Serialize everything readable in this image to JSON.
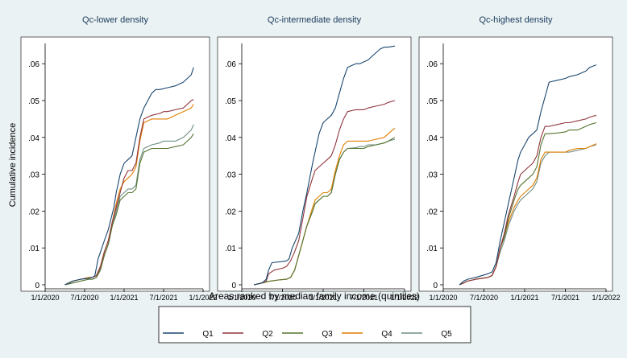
{
  "chart_data": {
    "type": "line",
    "ylabel": "Cumulative incidence",
    "yticks": [
      0,
      0.01,
      0.02,
      0.03,
      0.04,
      0.05,
      0.06
    ],
    "ytick_labels": [
      "0",
      ".01",
      ".02",
      ".03",
      ".04",
      ".05",
      ".06"
    ],
    "ylim": [
      0,
      0.0655
    ],
    "xlim": [
      "1/1/2020",
      "1/1/2022"
    ],
    "xticks": [
      "1/1/2020",
      "7/1/2020",
      "1/1/2021",
      "7/1/2021",
      "1/1/2022"
    ],
    "panels": [
      {
        "title": "Qc-lower density",
        "series": [
          {
            "name": "Q1",
            "x": [
              0.25,
              0.3,
              0.35,
              0.45,
              0.55,
              0.6,
              0.63,
              0.67,
              0.75,
              0.8,
              0.87,
              0.9,
              0.95,
              1.0,
              1.05,
              1.1,
              1.2,
              1.25,
              1.3,
              1.35,
              1.4,
              1.45,
              1.55,
              1.65,
              1.75,
              1.8,
              1.85,
              1.88
            ],
            "values": [
              0,
              0.0005,
              0.001,
              0.0015,
              0.0018,
              0.002,
              0.0025,
              0.007,
              0.012,
              0.015,
              0.021,
              0.025,
              0.03,
              0.033,
              0.034,
              0.035,
              0.045,
              0.048,
              0.05,
              0.052,
              0.053,
              0.053,
              0.0535,
              0.054,
              0.055,
              0.056,
              0.057,
              0.059
            ]
          },
          {
            "name": "Q2",
            "x": [
              0.25,
              0.35,
              0.45,
              0.55,
              0.6,
              0.65,
              0.7,
              0.75,
              0.8,
              0.85,
              0.9,
              0.95,
              1.0,
              1.05,
              1.1,
              1.15,
              1.2,
              1.25,
              1.35,
              1.45,
              1.5,
              1.55,
              1.65,
              1.75,
              1.85,
              1.88
            ],
            "values": [
              0,
              0.001,
              0.0015,
              0.0018,
              0.002,
              0.0025,
              0.005,
              0.009,
              0.012,
              0.017,
              0.021,
              0.025,
              0.029,
              0.031,
              0.031,
              0.033,
              0.04,
              0.045,
              0.046,
              0.0465,
              0.047,
              0.047,
              0.0475,
              0.048,
              0.05,
              0.0503
            ]
          },
          {
            "name": "Q3",
            "x": [
              0.25,
              0.35,
              0.45,
              0.55,
              0.6,
              0.65,
              0.7,
              0.75,
              0.8,
              0.85,
              0.9,
              0.95,
              1.0,
              1.05,
              1.1,
              1.15,
              1.2,
              1.25,
              1.35,
              1.45,
              1.5,
              1.55,
              1.65,
              1.75,
              1.85,
              1.88
            ],
            "values": [
              0,
              0.0005,
              0.001,
              0.0015,
              0.0015,
              0.002,
              0.004,
              0.008,
              0.011,
              0.016,
              0.019,
              0.023,
              0.024,
              0.025,
              0.025,
              0.026,
              0.033,
              0.036,
              0.037,
              0.037,
              0.037,
              0.037,
              0.0375,
              0.038,
              0.04,
              0.041
            ]
          },
          {
            "name": "Q4",
            "x": [
              0.25,
              0.35,
              0.45,
              0.55,
              0.6,
              0.65,
              0.7,
              0.75,
              0.8,
              0.85,
              0.9,
              0.95,
              1.0,
              1.05,
              1.1,
              1.15,
              1.2,
              1.25,
              1.35,
              1.45,
              1.5,
              1.55,
              1.65,
              1.75,
              1.85,
              1.88
            ],
            "values": [
              0,
              0.001,
              0.0015,
              0.002,
              0.002,
              0.0025,
              0.005,
              0.009,
              0.012,
              0.017,
              0.022,
              0.026,
              0.028,
              0.029,
              0.03,
              0.032,
              0.039,
              0.044,
              0.045,
              0.045,
              0.045,
              0.045,
              0.046,
              0.047,
              0.048,
              0.049
            ]
          },
          {
            "name": "Q5",
            "x": [
              0.25,
              0.35,
              0.45,
              0.55,
              0.6,
              0.65,
              0.7,
              0.75,
              0.8,
              0.85,
              0.9,
              0.95,
              1.0,
              1.05,
              1.1,
              1.15,
              1.2,
              1.25,
              1.35,
              1.45,
              1.5,
              1.55,
              1.65,
              1.75,
              1.85,
              1.88
            ],
            "values": [
              0,
              0.0005,
              0.001,
              0.0015,
              0.0015,
              0.002,
              0.0045,
              0.008,
              0.011,
              0.016,
              0.02,
              0.024,
              0.025,
              0.026,
              0.026,
              0.027,
              0.034,
              0.037,
              0.038,
              0.0385,
              0.039,
              0.039,
              0.039,
              0.04,
              0.042,
              0.0435
            ]
          }
        ]
      },
      {
        "title": "Qc-intermediate density",
        "series": [
          {
            "name": "Q1",
            "x": [
              0.15,
              0.25,
              0.3,
              0.33,
              0.37,
              0.5,
              0.55,
              0.58,
              0.62,
              0.7,
              0.75,
              0.8,
              0.87,
              0.9,
              0.95,
              1.0,
              1.05,
              1.1,
              1.15,
              1.2,
              1.25,
              1.3,
              1.4,
              1.45,
              1.5,
              1.55,
              1.6,
              1.65,
              1.7,
              1.75,
              1.8,
              1.88
            ],
            "values": [
              0,
              0.0005,
              0.0015,
              0.004,
              0.006,
              0.0063,
              0.0065,
              0.007,
              0.01,
              0.014,
              0.02,
              0.025,
              0.033,
              0.036,
              0.041,
              0.044,
              0.045,
              0.046,
              0.048,
              0.052,
              0.056,
              0.059,
              0.06,
              0.06,
              0.0605,
              0.061,
              0.062,
              0.063,
              0.064,
              0.0645,
              0.0645,
              0.0648
            ]
          },
          {
            "name": "Q2",
            "x": [
              0.15,
              0.25,
              0.3,
              0.33,
              0.4,
              0.5,
              0.55,
              0.6,
              0.65,
              0.7,
              0.75,
              0.8,
              0.87,
              0.9,
              0.95,
              1.0,
              1.05,
              1.1,
              1.15,
              1.2,
              1.25,
              1.3,
              1.4,
              1.45,
              1.5,
              1.55,
              1.65,
              1.75,
              1.8,
              1.88
            ],
            "values": [
              0,
              0.0005,
              0.001,
              0.003,
              0.004,
              0.0045,
              0.005,
              0.0065,
              0.009,
              0.012,
              0.018,
              0.024,
              0.029,
              0.031,
              0.032,
              0.033,
              0.034,
              0.035,
              0.038,
              0.042,
              0.045,
              0.047,
              0.0475,
              0.0475,
              0.0475,
              0.048,
              0.0485,
              0.049,
              0.0495,
              0.05
            ]
          },
          {
            "name": "Q3",
            "x": [
              0.15,
              0.25,
              0.35,
              0.45,
              0.55,
              0.6,
              0.65,
              0.7,
              0.75,
              0.8,
              0.87,
              0.9,
              0.95,
              1.0,
              1.05,
              1.1,
              1.15,
              1.2,
              1.25,
              1.3,
              1.4,
              1.45,
              1.5,
              1.55,
              1.65,
              1.75,
              1.8,
              1.88
            ],
            "values": [
              0,
              0.0005,
              0.001,
              0.0013,
              0.0015,
              0.002,
              0.004,
              0.008,
              0.012,
              0.016,
              0.02,
              0.022,
              0.023,
              0.024,
              0.024,
              0.025,
              0.03,
              0.034,
              0.036,
              0.037,
              0.037,
              0.037,
              0.037,
              0.0375,
              0.038,
              0.0385,
              0.039,
              0.04
            ]
          },
          {
            "name": "Q4",
            "x": [
              0.15,
              0.25,
              0.35,
              0.45,
              0.55,
              0.6,
              0.65,
              0.7,
              0.75,
              0.8,
              0.87,
              0.9,
              0.95,
              1.0,
              1.05,
              1.1,
              1.15,
              1.2,
              1.25,
              1.3,
              1.4,
              1.45,
              1.5,
              1.55,
              1.65,
              1.75,
              1.8,
              1.88
            ],
            "values": [
              0,
              0.0005,
              0.001,
              0.0013,
              0.0015,
              0.002,
              0.004,
              0.008,
              0.012,
              0.016,
              0.021,
              0.023,
              0.024,
              0.025,
              0.025,
              0.026,
              0.031,
              0.035,
              0.038,
              0.039,
              0.039,
              0.039,
              0.039,
              0.039,
              0.0395,
              0.04,
              0.041,
              0.0425
            ]
          },
          {
            "name": "Q5",
            "x": [
              0.15,
              0.25,
              0.35,
              0.45,
              0.55,
              0.6,
              0.65,
              0.7,
              0.75,
              0.8,
              0.87,
              0.9,
              0.95,
              1.0,
              1.05,
              1.1,
              1.15,
              1.2,
              1.25,
              1.3,
              1.4,
              1.45,
              1.5,
              1.55,
              1.65,
              1.75,
              1.8,
              1.88
            ],
            "values": [
              0,
              0.0005,
              0.001,
              0.0013,
              0.0015,
              0.002,
              0.004,
              0.008,
              0.012,
              0.016,
              0.02,
              0.022,
              0.023,
              0.024,
              0.024,
              0.025,
              0.03,
              0.034,
              0.036,
              0.037,
              0.0372,
              0.0375,
              0.0375,
              0.038,
              0.038,
              0.0385,
              0.039,
              0.0395
            ]
          }
        ]
      },
      {
        "title": "Qc-highest density",
        "series": [
          {
            "name": "Q1",
            "x": [
              0.2,
              0.25,
              0.3,
              0.4,
              0.55,
              0.6,
              0.65,
              0.7,
              0.75,
              0.8,
              0.87,
              0.92,
              0.95,
              1.0,
              1.05,
              1.1,
              1.15,
              1.2,
              1.25,
              1.3,
              1.4,
              1.5,
              1.55,
              1.65,
              1.75,
              1.8,
              1.88
            ],
            "values": [
              0,
              0.001,
              0.0015,
              0.002,
              0.003,
              0.0035,
              0.006,
              0.012,
              0.017,
              0.022,
              0.029,
              0.034,
              0.036,
              0.038,
              0.04,
              0.041,
              0.042,
              0.047,
              0.051,
              0.055,
              0.0555,
              0.056,
              0.0565,
              0.057,
              0.058,
              0.059,
              0.0597
            ]
          },
          {
            "name": "Q2",
            "x": [
              0.2,
              0.25,
              0.3,
              0.4,
              0.55,
              0.6,
              0.65,
              0.7,
              0.75,
              0.8,
              0.87,
              0.92,
              0.95,
              1.0,
              1.05,
              1.1,
              1.15,
              1.2,
              1.25,
              1.3,
              1.4,
              1.5,
              1.55,
              1.65,
              1.75,
              1.8,
              1.88
            ],
            "values": [
              0,
              0.0005,
              0.001,
              0.0015,
              0.002,
              0.0025,
              0.005,
              0.01,
              0.014,
              0.019,
              0.024,
              0.028,
              0.03,
              0.031,
              0.032,
              0.033,
              0.035,
              0.04,
              0.043,
              0.043,
              0.0435,
              0.044,
              0.044,
              0.0445,
              0.045,
              0.0455,
              0.046
            ]
          },
          {
            "name": "Q3",
            "x": [
              0.2,
              0.25,
              0.3,
              0.4,
              0.55,
              0.6,
              0.65,
              0.7,
              0.75,
              0.8,
              0.87,
              0.92,
              0.95,
              1.0,
              1.05,
              1.1,
              1.15,
              1.2,
              1.25,
              1.3,
              1.4,
              1.5,
              1.55,
              1.65,
              1.75,
              1.8,
              1.88
            ],
            "values": [
              0,
              0.0005,
              0.001,
              0.0015,
              0.002,
              0.0025,
              0.005,
              0.01,
              0.013,
              0.018,
              0.023,
              0.026,
              0.027,
              0.028,
              0.029,
              0.03,
              0.032,
              0.038,
              0.041,
              0.041,
              0.0412,
              0.0415,
              0.042,
              0.042,
              0.043,
              0.0435,
              0.044
            ]
          },
          {
            "name": "Q4",
            "x": [
              0.2,
              0.25,
              0.3,
              0.4,
              0.55,
              0.6,
              0.65,
              0.7,
              0.75,
              0.8,
              0.87,
              0.92,
              0.95,
              1.0,
              1.05,
              1.1,
              1.15,
              1.2,
              1.25,
              1.3,
              1.4,
              1.5,
              1.55,
              1.65,
              1.75,
              1.8,
              1.88
            ],
            "values": [
              0,
              0.0005,
              0.001,
              0.0015,
              0.002,
              0.0025,
              0.005,
              0.01,
              0.013,
              0.017,
              0.021,
              0.023,
              0.024,
              0.025,
              0.026,
              0.027,
              0.029,
              0.034,
              0.036,
              0.036,
              0.036,
              0.036,
              0.0365,
              0.037,
              0.037,
              0.0375,
              0.0383
            ]
          },
          {
            "name": "Q5",
            "x": [
              0.2,
              0.25,
              0.3,
              0.4,
              0.55,
              0.6,
              0.65,
              0.7,
              0.75,
              0.8,
              0.87,
              0.92,
              0.95,
              1.0,
              1.05,
              1.1,
              1.15,
              1.2,
              1.25,
              1.3,
              1.4,
              1.5,
              1.55,
              1.65,
              1.75,
              1.8,
              1.88
            ],
            "values": [
              0,
              0.0005,
              0.001,
              0.0015,
              0.002,
              0.0025,
              0.005,
              0.009,
              0.012,
              0.016,
              0.02,
              0.022,
              0.023,
              0.024,
              0.025,
              0.026,
              0.028,
              0.033,
              0.035,
              0.036,
              0.036,
              0.036,
              0.036,
              0.0365,
              0.037,
              0.0375,
              0.038
            ]
          }
        ]
      }
    ],
    "legend": {
      "title": "Areas ranked by median family income (quintiles)",
      "position": "bottom-center",
      "items": [
        {
          "name": "Q1",
          "color": "#1a476f"
        },
        {
          "name": "Q2",
          "color": "#90353b"
        },
        {
          "name": "Q3",
          "color": "#55752f"
        },
        {
          "name": "Q4",
          "color": "#e37e00"
        },
        {
          "name": "Q5",
          "color": "#6e8e84"
        }
      ]
    }
  }
}
